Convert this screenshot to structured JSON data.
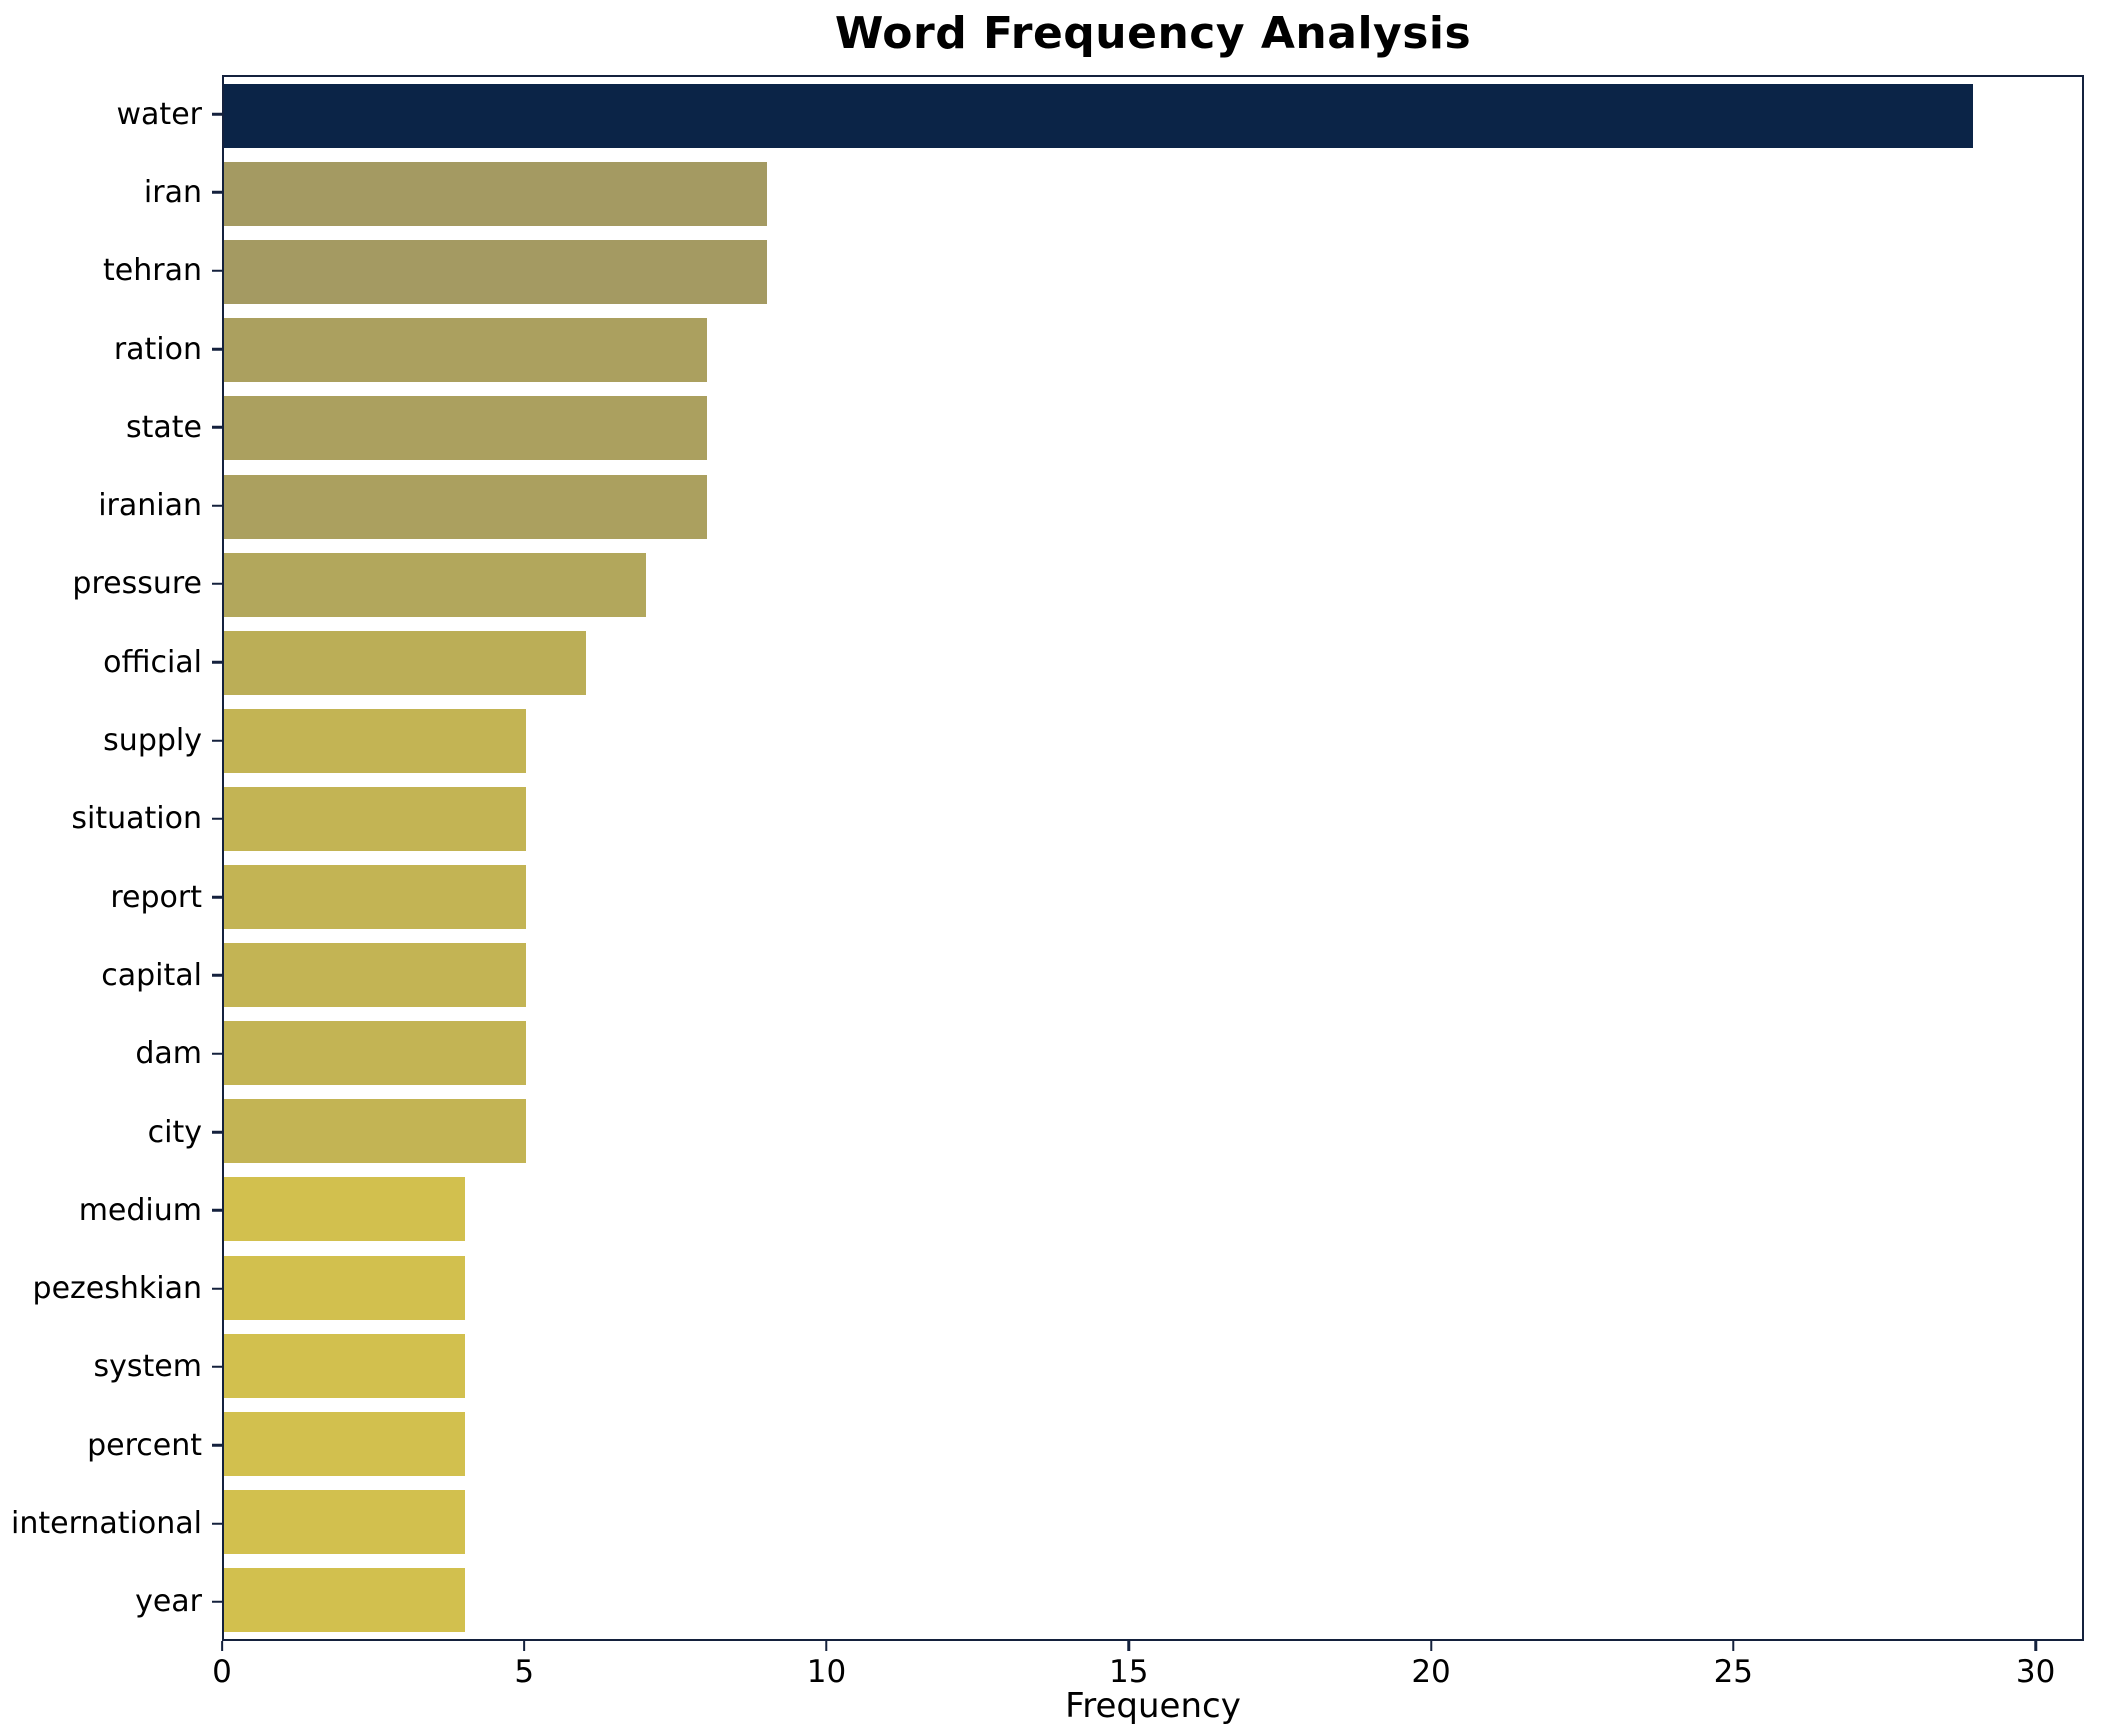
{
  "chart_data": {
    "type": "bar",
    "orientation": "horizontal",
    "title": "Word Frequency Analysis",
    "xlabel": "Frequency",
    "ylabel": "",
    "xlim": [
      0,
      30
    ],
    "xticks": [
      0,
      5,
      10,
      15,
      20,
      25,
      30
    ],
    "grid": false,
    "legend": "none",
    "categories": [
      "water",
      "iran",
      "tehran",
      "ration",
      "state",
      "iranian",
      "pressure",
      "official",
      "supply",
      "situation",
      "report",
      "capital",
      "dam",
      "city",
      "medium",
      "pezeshkian",
      "system",
      "percent",
      "international",
      "year"
    ],
    "values": [
      29,
      9,
      9,
      8,
      8,
      8,
      7,
      6,
      5,
      5,
      5,
      5,
      5,
      5,
      4,
      4,
      4,
      4,
      4,
      4
    ],
    "bar_colors": [
      "#0b2447",
      "#a49a62",
      "#a49a62",
      "#aba05f",
      "#aba05f",
      "#aba05f",
      "#b2a75c",
      "#bbae57",
      "#c3b454",
      "#c3b454",
      "#c3b454",
      "#c3b454",
      "#c3b454",
      "#c3b454",
      "#d2c04e",
      "#d2c04e",
      "#d2c04e",
      "#d2c04e",
      "#d2c04e",
      "#d2c04e"
    ],
    "axis_color": "#14213d",
    "background_color": "#ffffff"
  }
}
